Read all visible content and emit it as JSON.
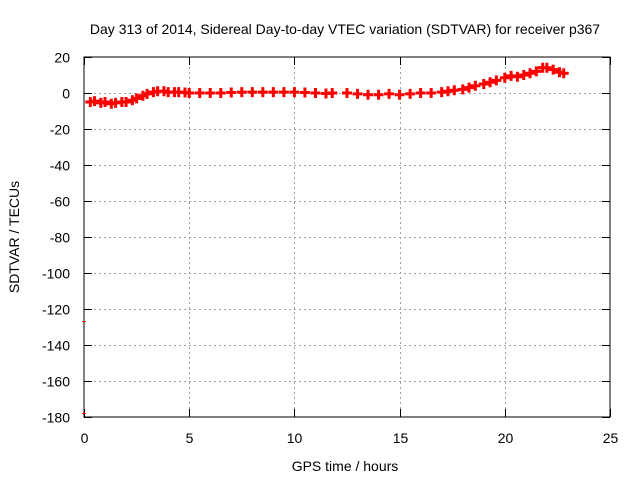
{
  "chart_data": {
    "type": "scatter",
    "title": "Day 313 of 2014, Sidereal Day-to-day VTEC variation (SDTVAR) for receiver p367",
    "xlabel": "GPS time / hours",
    "ylabel": "SDTVAR / TECUs",
    "xlim": [
      0,
      25
    ],
    "ylim": [
      -180,
      20
    ],
    "xticks": [
      0,
      5,
      10,
      15,
      20,
      25
    ],
    "yticks": [
      20,
      0,
      -20,
      -40,
      -60,
      -80,
      -100,
      -120,
      -140,
      -160,
      -180
    ],
    "grid": true,
    "marker": "plus",
    "series": [
      {
        "name": "SDTVAR",
        "color": "#ff0000",
        "x": [
          0.3,
          0.5,
          0.8,
          1.0,
          1.3,
          1.5,
          1.8,
          2.0,
          2.3,
          2.5,
          2.8,
          3.0,
          3.3,
          3.5,
          3.8,
          4.0,
          4.3,
          4.5,
          4.8,
          5.0,
          5.5,
          6.0,
          6.5,
          7.0,
          7.5,
          8.0,
          8.5,
          9.0,
          9.5,
          10.0,
          10.5,
          11.0,
          11.5,
          11.8,
          12.5,
          13.0,
          13.5,
          14.0,
          14.5,
          15.0,
          15.5,
          16.0,
          16.5,
          17.0,
          17.3,
          17.6,
          18.0,
          18.3,
          18.6,
          19.0,
          19.3,
          19.6,
          20.0,
          20.3,
          20.6,
          20.9,
          21.2,
          21.5,
          21.8,
          22.0,
          22.3,
          22.6,
          22.8,
          0.0,
          0.0
        ],
        "y": [
          -5,
          -4.5,
          -5.5,
          -5,
          -6,
          -5.5,
          -5,
          -5,
          -4,
          -3,
          -1.5,
          -0.5,
          0.5,
          1,
          1,
          0.5,
          0.5,
          0.5,
          0.3,
          0,
          0,
          0,
          0,
          0.3,
          0.5,
          0.5,
          0.5,
          0.5,
          0.5,
          0.5,
          0.3,
          0,
          -0.3,
          0,
          0,
          -0.5,
          -1,
          -1,
          -0.5,
          -1,
          -0.5,
          0,
          0,
          0.5,
          1,
          1.5,
          2,
          3,
          4,
          5,
          6,
          7,
          8.5,
          9.5,
          9,
          10,
          11,
          12,
          14,
          14,
          13,
          11.5,
          11,
          -127,
          -178
        ]
      }
    ]
  }
}
